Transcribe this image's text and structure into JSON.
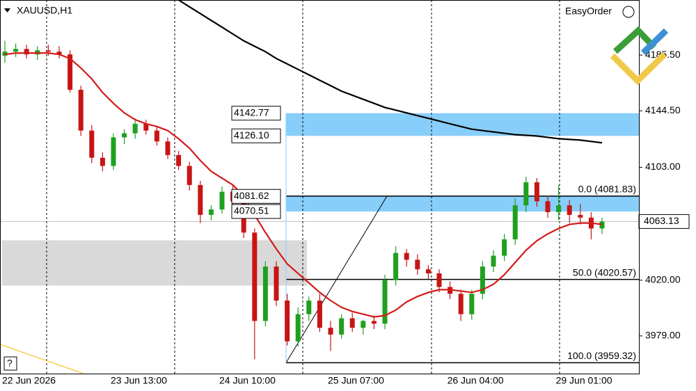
{
  "chart_data": {
    "type": "candlestick",
    "title": "XAUUSD,H1",
    "button": "EasyOrder",
    "help": "?",
    "ylim": [
      3951.3,
      4226
    ],
    "yticks": [
      {
        "value": 3979,
        "label": "3979.00"
      },
      {
        "value": 4020,
        "label": "4020.00"
      },
      {
        "value": 4103,
        "label": "4103.00"
      },
      {
        "value": 4144.5,
        "label": "4144.50"
      },
      {
        "value": 4185.5,
        "label": "4185.50"
      }
    ],
    "categories": [
      "22 Jun 2026",
      null,
      null,
      null,
      null,
      null,
      null,
      null,
      null,
      null,
      "23 Jun 13:00",
      null,
      null,
      null,
      null,
      null,
      null,
      null,
      null,
      null,
      "24 Jun 10:00",
      null,
      null,
      null,
      null,
      null,
      null,
      null,
      null,
      null,
      "25 Jun 07:00",
      null,
      null,
      null,
      null,
      null,
      null,
      null,
      null,
      null,
      null,
      "26 Jun 04:00",
      null,
      null,
      null,
      null,
      null,
      null,
      null,
      null,
      null,
      "29 Jun 01:00",
      null,
      null,
      null,
      null
    ],
    "up_color": "#1fa01f",
    "down_color": "#c81414",
    "open": [
      4185,
      4188,
      4190,
      4186,
      4189,
      4188,
      4186,
      4160,
      4130,
      4110,
      4104,
      4125,
      4128,
      4135,
      4130,
      4122,
      4112,
      4104,
      4090,
      4068,
      4072,
      4085,
      4078,
      4055,
      3990,
      4030,
      4005,
      3975,
      3995,
      4005,
      3985,
      3980,
      3992,
      3985,
      3990,
      3988,
      4020,
      4040,
      4035,
      4028,
      4025,
      4015,
      4010,
      3995,
      4010,
      4030,
      4038,
      4050,
      4075,
      4092,
      4078,
      4070,
      4075,
      4068,
      4066,
      4058
    ],
    "high": [
      4196,
      4194,
      4193,
      4192,
      4193,
      4192,
      4189,
      4163,
      4134,
      4114,
      4128,
      4131,
      4139,
      4138,
      4133,
      4125,
      4115,
      4107,
      4093,
      4075,
      4089,
      4090,
      4082,
      4058,
      4034,
      4034,
      4010,
      4000,
      4008,
      4010,
      3990,
      3995,
      3996,
      3991,
      3994,
      4024,
      4045,
      4043,
      4039,
      4031,
      4028,
      4019,
      4013,
      4013,
      4034,
      4042,
      4054,
      4080,
      4096,
      4095,
      4082,
      4090,
      4079,
      4076,
      4070,
      4066
    ],
    "low": [
      4180,
      4184,
      4183,
      4182,
      4185,
      4183,
      4158,
      4126,
      4106,
      4100,
      4101,
      4120,
      4124,
      4127,
      4119,
      4109,
      4101,
      4086,
      4062,
      4064,
      4069,
      4074,
      4051,
      3962,
      3986,
      4001,
      3972,
      3971,
      3990,
      3982,
      3968,
      3977,
      3982,
      3980,
      3984,
      3984,
      4016,
      4030,
      4024,
      4021,
      4011,
      4006,
      3990,
      3991,
      4006,
      4026,
      4034,
      4046,
      4070,
      4074,
      4066,
      4064,
      4062,
      4061,
      4050,
      4054
    ],
    "close": [
      4188,
      4190,
      4186,
      4189,
      4188,
      4186,
      4160,
      4130,
      4110,
      4104,
      4125,
      4128,
      4135,
      4130,
      4122,
      4112,
      4104,
      4090,
      4068,
      4072,
      4085,
      4078,
      4055,
      3990,
      4030,
      4005,
      3975,
      3995,
      4005,
      3985,
      3980,
      3992,
      3985,
      3990,
      3988,
      4020,
      4040,
      4035,
      4028,
      4025,
      4015,
      4010,
      3995,
      4010,
      4030,
      4038,
      4050,
      4075,
      4092,
      4078,
      4070,
      4075,
      4068,
      4066,
      4058,
      4063.13
    ],
    "series": [
      {
        "color": "#d41a1a",
        "values": [
          4186,
          4187,
          4187,
          4187,
          4187,
          4186,
          4183,
          4176,
          4168,
          4158,
          4150,
          4143,
          4138,
          4135,
          4133,
          4130,
          4124,
          4117,
          4108,
          4100,
          4095,
          4090,
          4082,
          4068,
          4055,
          4043,
          4032,
          4025,
          4018,
          4011,
          4005,
          4000,
          3997,
          3995,
          3993,
          3994,
          3998,
          4004,
          4008,
          4011,
          4013,
          4013,
          4012,
          4011,
          4013,
          4017,
          4024,
          4033,
          4042,
          4049,
          4054,
          4058,
          4061,
          4062,
          4062,
          4061
        ]
      },
      {
        "color": "#000000",
        "values": [
          null,
          null,
          null,
          null,
          null,
          null,
          null,
          null,
          null,
          null,
          null,
          null,
          null,
          null,
          null,
          null,
          4226,
          4221,
          4216,
          4211,
          4206,
          4201,
          4196,
          4192,
          4188,
          4183,
          4179,
          4175,
          4171,
          4167,
          4163,
          4159,
          4156,
          4153,
          4150,
          4147,
          4145,
          4143,
          4141,
          4139,
          4137,
          4135,
          4133,
          4131,
          4130,
          4129,
          4128,
          4127,
          4126.5,
          4126,
          4125,
          4124,
          4123.5,
          4123,
          4122,
          4121
        ]
      }
    ],
    "zones": [
      {
        "color": "#87cefa",
        "low": {
          "value": 4126.1,
          "label": "4126.10"
        },
        "high": {
          "value": 4142.77,
          "label": "4142.77"
        }
      },
      {
        "color": "#87cefa",
        "low": {
          "value": 4070.51,
          "label": "4070.51"
        },
        "high": {
          "value": 4081.62,
          "label": "4081.62"
        }
      },
      {
        "color": "#d9d9d9",
        "low": 4016,
        "high": 4049.3
      }
    ],
    "fib_levels": [
      {
        "value": 4081.83,
        "label": "0.0 (4081.83)"
      },
      {
        "value": 4020.57,
        "label": "50.0 (4020.57)"
      },
      {
        "value": 3959.32,
        "label": "100.0 (3959.32)"
      }
    ],
    "current_price": 4063.13
  }
}
